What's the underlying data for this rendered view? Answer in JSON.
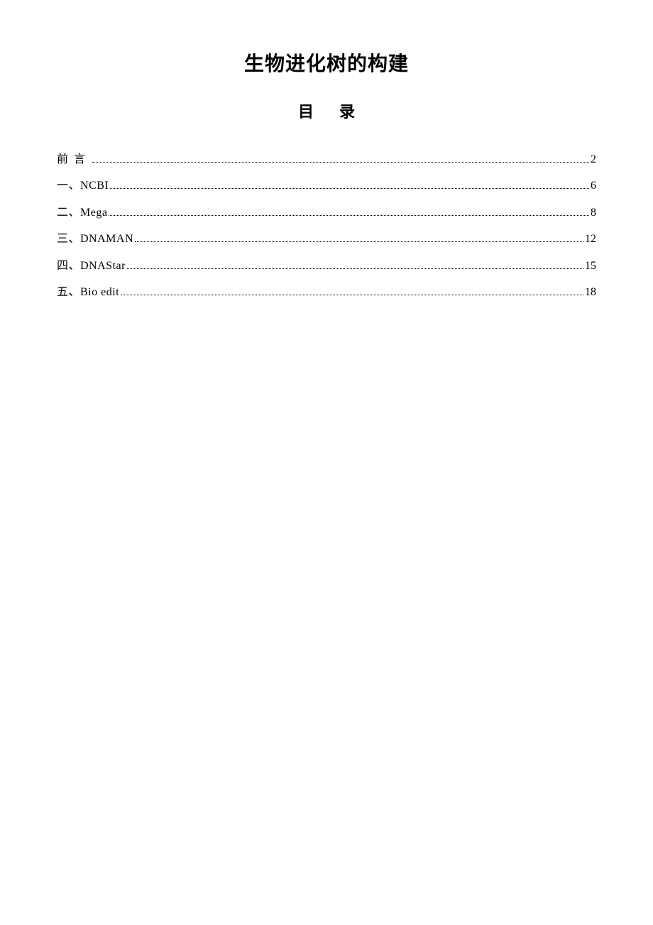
{
  "document": {
    "title": "生物进化树的构建",
    "subtitle": "目录",
    "background_color": "#ffffff",
    "text_color": "#000000",
    "title_fontsize": 28,
    "subtitle_fontsize": 22,
    "toc_fontsize": 16,
    "toc_entries": [
      {
        "label": "前言",
        "page": "2",
        "label_class": "label-preface"
      },
      {
        "label": "一、NCBI",
        "page": "6",
        "label_class": ""
      },
      {
        "label": "二、Mega",
        "page": "8",
        "label_class": ""
      },
      {
        "label": "三、DNAMAN",
        "page": "12",
        "label_class": ""
      },
      {
        "label": "四、DNAStar",
        "page": "15",
        "label_class": ""
      },
      {
        "label": "五、Bio edit",
        "page": "18",
        "label_class": ""
      }
    ]
  }
}
